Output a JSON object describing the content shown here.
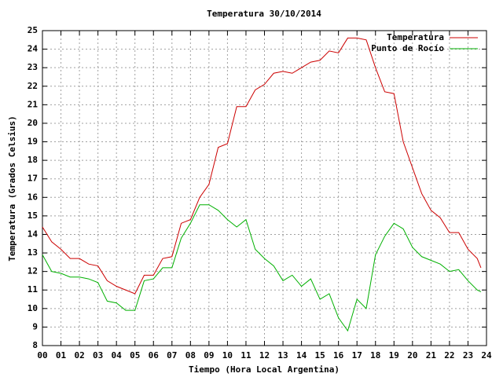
{
  "chart_data": {
    "type": "line",
    "title": "Temperatura 30/10/2014",
    "xlabel": "Tiempo (Hora Local Argentina)",
    "ylabel": "Temperatura (Grados Celsius)",
    "x": [
      0,
      0.5,
      1,
      1.5,
      2,
      2.5,
      3,
      3.5,
      4,
      4.5,
      5,
      5.5,
      6,
      6.5,
      7,
      7.5,
      8,
      8.5,
      9,
      9.5,
      10,
      10.5,
      11,
      11.5,
      12,
      12.5,
      13,
      13.5,
      14,
      14.5,
      15,
      15.5,
      16,
      16.5,
      17,
      17.5,
      18,
      18.5,
      19,
      19.5,
      20,
      20.5,
      21,
      21.5,
      22,
      22.5,
      23,
      23.5,
      23.7
    ],
    "series": [
      {
        "name": "Temperatura",
        "color": "#cc0000",
        "values": [
          14.4,
          13.6,
          13.2,
          12.7,
          12.7,
          12.4,
          12.3,
          11.5,
          11.2,
          11.0,
          10.8,
          11.8,
          11.8,
          12.7,
          12.8,
          14.6,
          14.8,
          16.0,
          16.7,
          18.7,
          18.9,
          20.9,
          20.9,
          21.8,
          22.1,
          22.7,
          22.8,
          22.7,
          23.0,
          23.3,
          23.4,
          23.9,
          23.8,
          24.6,
          24.6,
          24.5,
          23.0,
          21.7,
          21.6,
          19.0,
          17.6,
          16.2,
          15.3,
          14.9,
          14.1,
          14.1,
          13.2,
          12.7,
          12.2
        ]
      },
      {
        "name": "Punto de Rocío",
        "color": "#00b000",
        "values": [
          12.9,
          12.0,
          11.9,
          11.7,
          11.7,
          11.6,
          11.4,
          10.4,
          10.3,
          9.9,
          9.9,
          11.5,
          11.6,
          12.2,
          12.2,
          13.8,
          14.6,
          15.6,
          15.6,
          15.3,
          14.8,
          14.4,
          14.8,
          13.2,
          12.7,
          12.3,
          11.5,
          11.8,
          11.2,
          11.6,
          10.5,
          10.8,
          9.5,
          8.8,
          10.5,
          10.0,
          12.9,
          13.9,
          14.6,
          14.3,
          13.3,
          12.8,
          12.6,
          12.4,
          12.0,
          12.1,
          11.5,
          11.0,
          10.9
        ]
      }
    ],
    "xlim": [
      0,
      24
    ],
    "xticks": [
      {
        "value": 0,
        "label": "00"
      },
      {
        "value": 1,
        "label": "01"
      },
      {
        "value": 2,
        "label": "02"
      },
      {
        "value": 3,
        "label": "03"
      },
      {
        "value": 4,
        "label": "04"
      },
      {
        "value": 5,
        "label": "05"
      },
      {
        "value": 6,
        "label": "06"
      },
      {
        "value": 7,
        "label": "07"
      },
      {
        "value": 8,
        "label": "08"
      },
      {
        "value": 9,
        "label": "09"
      },
      10,
      11,
      12,
      13,
      14,
      15,
      16,
      17,
      18,
      19,
      20,
      21,
      22,
      23,
      24
    ],
    "ylim": [
      8,
      25
    ],
    "yticks": [
      8,
      9,
      10,
      11,
      12,
      13,
      14,
      15,
      16,
      17,
      18,
      19,
      20,
      21,
      22,
      23,
      24,
      25
    ],
    "grid": true,
    "legend": "top-right"
  }
}
